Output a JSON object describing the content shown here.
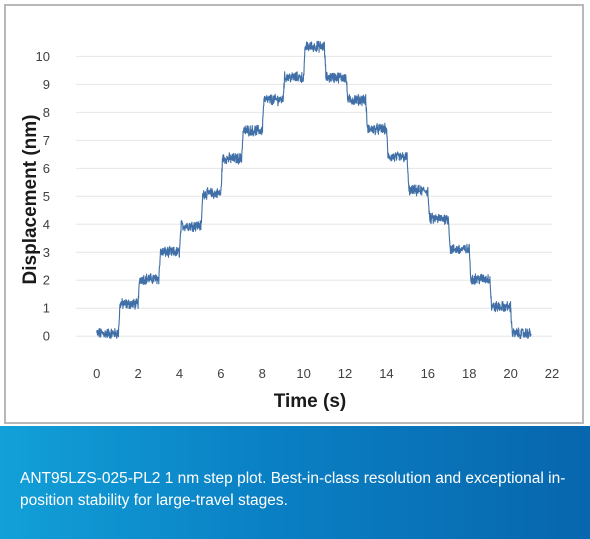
{
  "chart_data": {
    "type": "line",
    "title": "",
    "xlabel": "Time (s)",
    "ylabel": "Displacement (nm)",
    "xlim": [
      -1,
      22
    ],
    "ylim": [
      -0.6,
      10.8
    ],
    "x_ticks": [
      0,
      2,
      4,
      6,
      8,
      10,
      12,
      14,
      16,
      18,
      20,
      22
    ],
    "y_ticks": [
      0,
      1,
      2,
      3,
      4,
      5,
      6,
      7,
      8,
      9,
      10
    ],
    "grid": "horizontal",
    "series": [
      {
        "color": "#3f6fa6",
        "steps": [
          {
            "t_start": 0.0,
            "t_end": 1.05,
            "y": 0.1
          },
          {
            "t_start": 1.05,
            "t_end": 2.0,
            "y": 1.15
          },
          {
            "t_start": 2.0,
            "t_end": 3.0,
            "y": 2.05
          },
          {
            "t_start": 3.0,
            "t_end": 4.0,
            "y": 3.0
          },
          {
            "t_start": 4.0,
            "t_end": 5.05,
            "y": 3.95
          },
          {
            "t_start": 5.05,
            "t_end": 6.0,
            "y": 5.1
          },
          {
            "t_start": 6.0,
            "t_end": 7.0,
            "y": 6.35
          },
          {
            "t_start": 7.0,
            "t_end": 8.0,
            "y": 7.35
          },
          {
            "t_start": 8.0,
            "t_end": 9.0,
            "y": 8.45
          },
          {
            "t_start": 9.0,
            "t_end": 10.0,
            "y": 9.25
          },
          {
            "t_start": 10.0,
            "t_end": 11.0,
            "y": 10.35
          },
          {
            "t_start": 11.0,
            "t_end": 12.05,
            "y": 9.25
          },
          {
            "t_start": 12.05,
            "t_end": 13.0,
            "y": 8.45
          },
          {
            "t_start": 13.0,
            "t_end": 14.0,
            "y": 7.4
          },
          {
            "t_start": 14.0,
            "t_end": 15.0,
            "y": 6.4
          },
          {
            "t_start": 15.0,
            "t_end": 16.0,
            "y": 5.2
          },
          {
            "t_start": 16.0,
            "t_end": 17.0,
            "y": 4.2
          },
          {
            "t_start": 17.0,
            "t_end": 18.0,
            "y": 3.1
          },
          {
            "t_start": 18.0,
            "t_end": 19.0,
            "y": 2.05
          },
          {
            "t_start": 19.0,
            "t_end": 20.0,
            "y": 1.05
          },
          {
            "t_start": 20.0,
            "t_end": 21.0,
            "y": 0.1
          }
        ]
      }
    ]
  },
  "caption": {
    "text": "ANT95LZS-025-PL2 1 nm step plot. Best-in-class resolution and exceptional in-position stability for large-travel stages."
  },
  "colors": {
    "line": "#3f6fa6",
    "grid": "#e6e6e6",
    "frame_border": "#b8b8b8",
    "caption_band_start": "#12a0d8",
    "caption_band_end": "#0866ad",
    "caption_text": "#ffffff"
  }
}
